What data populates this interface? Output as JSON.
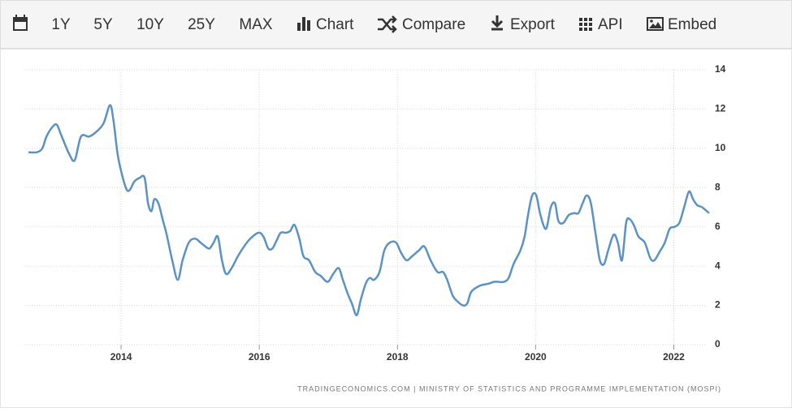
{
  "toolbar": {
    "buttons": [
      "1Y",
      "5Y",
      "10Y",
      "25Y",
      "MAX",
      "Chart",
      "Compare",
      "Export",
      "API",
      "Embed"
    ]
  },
  "chart_data": {
    "type": "line",
    "source": "TRADINGECONOMICS.COM | MINISTRY OF STATISTICS AND PROGRAMME IMPLEMENTATION (MOSPI)",
    "color": "#5b92c6",
    "grid": true,
    "xlim": [
      2012.6,
      2022.5
    ],
    "xticks": [
      2014,
      2016,
      2018,
      2020,
      2022
    ],
    "ylim": [
      0,
      14
    ],
    "yticks": [
      0,
      2,
      4,
      6,
      8,
      10,
      12,
      14
    ],
    "x": [
      2012.66,
      2012.78,
      2012.86,
      2012.92,
      2013.01,
      2013.07,
      2013.13,
      2013.25,
      2013.33,
      2013.42,
      2013.54,
      2013.66,
      2013.75,
      2013.84,
      2013.89,
      2013.95,
      2014.01,
      2014.08,
      2014.13,
      2014.19,
      2014.27,
      2014.34,
      2014.39,
      2014.44,
      2014.48,
      2014.54,
      2014.6,
      2014.66,
      2014.74,
      2014.82,
      2014.89,
      2014.98,
      2015.07,
      2015.15,
      2015.22,
      2015.28,
      2015.34,
      2015.4,
      2015.46,
      2015.52,
      2015.6,
      2015.69,
      2015.78,
      2015.87,
      2015.99,
      2016.06,
      2016.13,
      2016.19,
      2016.25,
      2016.31,
      2016.39,
      2016.45,
      2016.51,
      2016.58,
      2016.64,
      2016.72,
      2016.81,
      2016.89,
      2016.99,
      2017.07,
      2017.15,
      2017.21,
      2017.28,
      2017.34,
      2017.41,
      2017.47,
      2017.54,
      2017.6,
      2017.66,
      2017.74,
      2017.81,
      2017.89,
      2017.98,
      2018.05,
      2018.13,
      2018.21,
      2018.31,
      2018.39,
      2018.48,
      2018.58,
      2018.66,
      2018.72,
      2018.8,
      2018.87,
      2018.95,
      2019.01,
      2019.07,
      2019.19,
      2019.31,
      2019.4,
      2019.46,
      2019.54,
      2019.61,
      2019.68,
      2019.78,
      2019.84,
      2019.89,
      2019.95,
      2020.01,
      2020.07,
      2020.15,
      2020.22,
      2020.28,
      2020.33,
      2020.4,
      2020.48,
      2020.56,
      2020.62,
      2020.68,
      2020.74,
      2020.8,
      2020.87,
      2020.93,
      2020.99,
      2021.05,
      2021.13,
      2021.19,
      2021.25,
      2021.31,
      2021.36,
      2021.42,
      2021.49,
      2021.58,
      2021.66,
      2021.72,
      2021.79,
      2021.87,
      2021.94,
      2022.01,
      2022.08,
      2022.15,
      2022.22,
      2022.28,
      2022.34,
      2022.41,
      2022.51
    ],
    "values": [
      9.8,
      9.8,
      10.0,
      10.6,
      11.1,
      11.2,
      10.7,
      9.7,
      9.4,
      10.6,
      10.6,
      10.9,
      11.3,
      12.2,
      11.4,
      9.7,
      8.7,
      7.9,
      7.9,
      8.3,
      8.5,
      8.5,
      7.2,
      6.8,
      7.4,
      7.2,
      6.4,
      5.6,
      4.3,
      3.3,
      4.3,
      5.2,
      5.4,
      5.2,
      5.0,
      4.9,
      5.2,
      5.5,
      4.3,
      3.6,
      3.9,
      4.5,
      5.0,
      5.4,
      5.7,
      5.5,
      4.9,
      4.9,
      5.3,
      5.7,
      5.7,
      5.8,
      6.1,
      5.4,
      4.5,
      4.3,
      3.7,
      3.5,
      3.2,
      3.6,
      3.9,
      3.3,
      2.6,
      2.1,
      1.5,
      2.3,
      3.1,
      3.4,
      3.3,
      3.7,
      4.8,
      5.2,
      5.2,
      4.7,
      4.3,
      4.5,
      4.8,
      5.0,
      4.3,
      3.7,
      3.7,
      3.3,
      2.5,
      2.2,
      2.0,
      2.1,
      2.7,
      3.0,
      3.1,
      3.2,
      3.2,
      3.2,
      3.4,
      4.1,
      4.8,
      5.5,
      6.6,
      7.6,
      7.6,
      6.6,
      5.9,
      7.0,
      7.2,
      6.3,
      6.2,
      6.6,
      6.7,
      6.7,
      7.2,
      7.6,
      7.2,
      5.6,
      4.3,
      4.1,
      4.8,
      5.6,
      5.2,
      4.3,
      6.2,
      6.4,
      6.1,
      5.5,
      5.2,
      4.4,
      4.3,
      4.7,
      5.2,
      5.9,
      6.0,
      6.2,
      7.0,
      7.8,
      7.4,
      7.1,
      7.0,
      6.7
    ]
  }
}
